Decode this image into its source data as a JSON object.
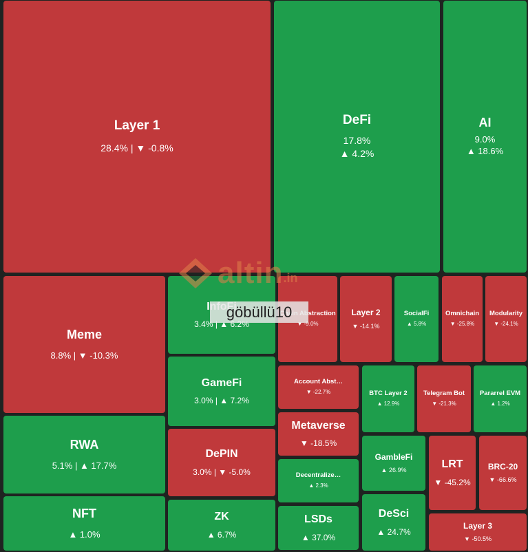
{
  "chart_data": {
    "type": "treemap",
    "colors": {
      "up": "#1e9e4c",
      "down": "#c0393b"
    },
    "sectors": [
      {
        "name": "Layer 1",
        "share": "28.4%",
        "change": "▼ -0.8%",
        "dir": "down"
      },
      {
        "name": "DeFi",
        "share": "17.8%",
        "change": "▲ 4.2%",
        "dir": "up"
      },
      {
        "name": "AI",
        "share": "9.0%",
        "change": "▲ 18.6%",
        "dir": "up"
      },
      {
        "name": "Meme",
        "share": "8.8%",
        "change": "▼ -10.3%",
        "dir": "down"
      },
      {
        "name": "RWA",
        "share": "5.1%",
        "change": "▲ 17.7%",
        "dir": "up"
      },
      {
        "name": "NFT",
        "share": "",
        "change": "▲ 1.0%",
        "dir": "up"
      },
      {
        "name": "InfoFi",
        "share": "3.4%",
        "change": "▲ 6.2%",
        "dir": "up"
      },
      {
        "name": "GameFi",
        "share": "3.0%",
        "change": "▲ 7.2%",
        "dir": "up"
      },
      {
        "name": "DePIN",
        "share": "3.0%",
        "change": "▼ -5.0%",
        "dir": "down"
      },
      {
        "name": "ZK",
        "share": "",
        "change": "▲ 6.7%",
        "dir": "up"
      },
      {
        "name": "Chain Abstraction",
        "share": "",
        "change": "▼ -9.0%",
        "dir": "down"
      },
      {
        "name": "Layer 2",
        "share": "",
        "change": "▼ -14.1%",
        "dir": "down"
      },
      {
        "name": "SocialFi",
        "share": "",
        "change": "▲ 5.8%",
        "dir": "up"
      },
      {
        "name": "Omnichain",
        "share": "",
        "change": "▼ -25.8%",
        "dir": "down"
      },
      {
        "name": "Modularity",
        "share": "",
        "change": "▼ -24.1%",
        "dir": "down"
      },
      {
        "name": "Account Abst…",
        "share": "",
        "change": "▼ -22.7%",
        "dir": "down"
      },
      {
        "name": "Metaverse",
        "share": "",
        "change": "▼ -18.5%",
        "dir": "down"
      },
      {
        "name": "Decentralize…",
        "share": "",
        "change": "▲ 2.3%",
        "dir": "up"
      },
      {
        "name": "LSDs",
        "share": "",
        "change": "▲ 37.0%",
        "dir": "up"
      },
      {
        "name": "BTC Layer 2",
        "share": "",
        "change": "▲ 12.9%",
        "dir": "up"
      },
      {
        "name": "Telegram Bot",
        "share": "",
        "change": "▼ -21.3%",
        "dir": "down"
      },
      {
        "name": "Pararrel EVM",
        "share": "",
        "change": "▲ 1.2%",
        "dir": "up"
      },
      {
        "name": "GambleFi",
        "share": "",
        "change": "▲ 26.9%",
        "dir": "up"
      },
      {
        "name": "DeSci",
        "share": "",
        "change": "▲ 24.7%",
        "dir": "up"
      },
      {
        "name": "LRT",
        "share": "",
        "change": "▼ -45.2%",
        "dir": "down"
      },
      {
        "name": "BRC-20",
        "share": "",
        "change": "▼ -66.6%",
        "dir": "down"
      },
      {
        "name": "Layer 3",
        "share": "",
        "change": "▼ -50.5%",
        "dir": "down"
      }
    ]
  },
  "watermark": {
    "brand": "altin",
    "tld": ".in",
    "user": "göbüllü10"
  }
}
